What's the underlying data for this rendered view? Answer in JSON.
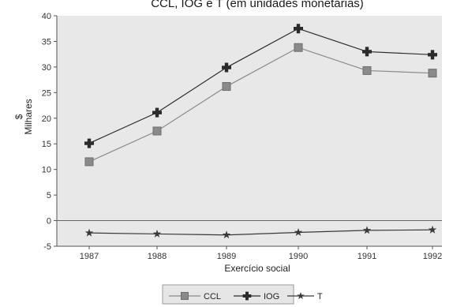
{
  "chart_data": {
    "type": "line",
    "title": "CCL, IOG e T (em unidades monetárias)",
    "xlabel": "Exercício social",
    "ylabel": "$ Milhares",
    "ylabel_lines": [
      "$",
      "Milhares"
    ],
    "x": [
      "1987",
      "1988",
      "1989",
      "1990",
      "1991",
      "1992"
    ],
    "ylim": [
      -5,
      40
    ],
    "yticks": [
      -5,
      0,
      5,
      10,
      15,
      20,
      25,
      30,
      35,
      40
    ],
    "grid": false,
    "legend_position": "bottom-center",
    "series": [
      {
        "name": "CCL",
        "marker": "square",
        "color": "#8a8a8a",
        "values": [
          11.5,
          17.5,
          26.2,
          33.8,
          29.3,
          28.8
        ]
      },
      {
        "name": "IOG",
        "marker": "cross",
        "color": "#2b2b2b",
        "values": [
          15.1,
          21.1,
          29.9,
          37.5,
          33.0,
          32.4
        ]
      },
      {
        "name": "T",
        "marker": "star",
        "color": "#3a3a3a",
        "values": [
          -2.4,
          -2.6,
          -2.8,
          -2.3,
          -1.9,
          -1.8
        ]
      }
    ]
  }
}
